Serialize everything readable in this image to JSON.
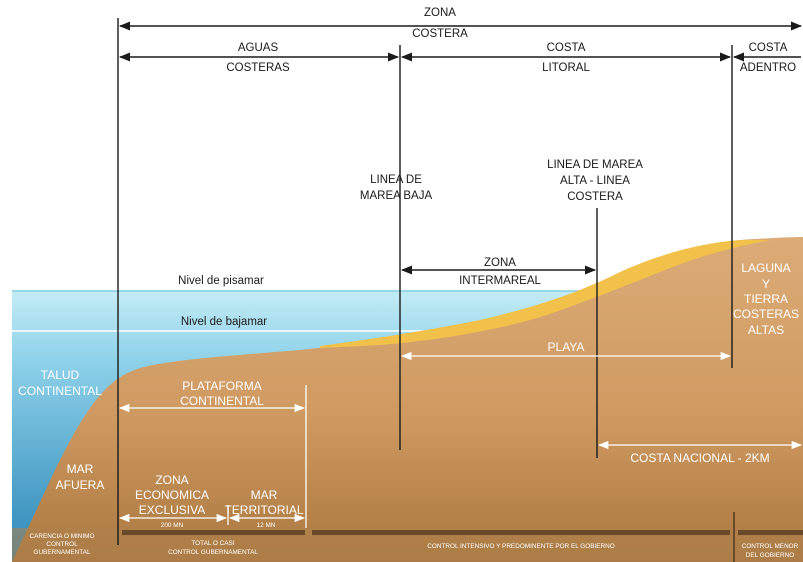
{
  "top": {
    "zona_costera": [
      "ZONA",
      "COSTERA"
    ],
    "aguas_costeras": [
      "AGUAS",
      "COSTERAS"
    ],
    "costa_litoral": [
      "COSTA",
      "LITORAL"
    ],
    "costa_adentro": [
      "COSTA",
      "ADENTRO"
    ]
  },
  "markers": {
    "linea_marea_baja": [
      "LINEA DE",
      "MAREA BAJA"
    ],
    "linea_marea_alta": [
      "LINEA DE MAREA",
      "ALTA - LINEA",
      "COSTERA"
    ]
  },
  "water": {
    "pisamar": "Nivel de pisamar",
    "bajamar": "Nivel de bajamar"
  },
  "zones": {
    "intermareal": [
      "ZONA",
      "INTERMAREAL"
    ],
    "playa": "PLAYA",
    "laguna": [
      "LAGUNA",
      "Y",
      "TIERRA",
      "COSTERAS",
      "ALTAS"
    ],
    "talud": [
      "TALUD",
      "CONTINENTAL"
    ],
    "plataforma": [
      "PLATAFORMA",
      "CONTINENTAL"
    ],
    "costa_nacional": "COSTA NACIONAL -  2KM",
    "mar_afuera": [
      "MAR",
      "AFUERA"
    ],
    "zona_economica": [
      "ZONA",
      "ECONOMICA",
      "EXCLUSIVA"
    ],
    "mar_territorial": [
      "MAR",
      "TERRITORIAL"
    ],
    "mn200": "200 MN",
    "mn12": "12 MN"
  },
  "control": {
    "carencia": [
      "CARENCIA O MINIMO",
      "CONTROL",
      "GUBERNAMENTAL"
    ],
    "total": [
      "TOTAL O CASI",
      "CONTROL GUBERNAMENTAL"
    ],
    "intensivo": "CONTROL INTENSIVO Y PREDOMINENTE POR EL GOBIERNO",
    "menor": [
      "CONTROL MENOR",
      "DEL GOBIERNO"
    ]
  },
  "colors": {
    "land": "#d8a26a",
    "land_dark": "#a87a4a",
    "sand": "#f2c14a",
    "water_top": "#bfe8f2",
    "water_deep": "#2d8ab8"
  }
}
